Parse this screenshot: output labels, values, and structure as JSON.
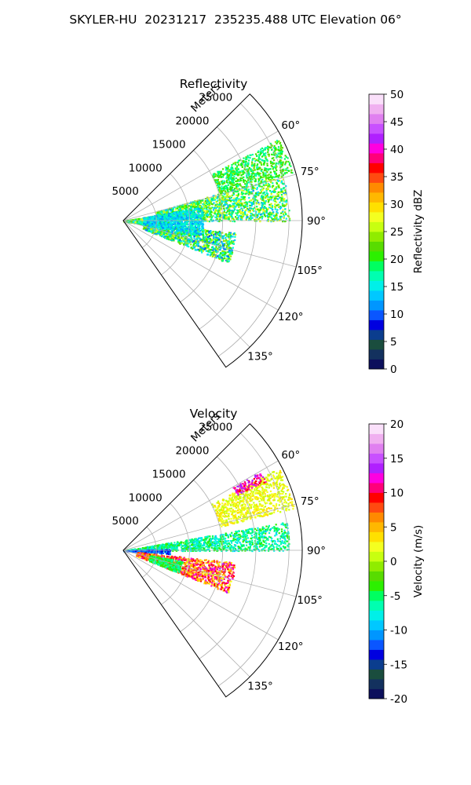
{
  "figure": {
    "title": "SKYLER-HU  20231217  235235.488 UTC Elevation 06°"
  },
  "chart_data": [
    {
      "type": "heatmap",
      "subtype": "polar-sector-radar",
      "title": "Reflectivity",
      "radial_label": "Meters",
      "radial_ticks": [
        5000,
        10000,
        15000,
        20000,
        25000
      ],
      "radial_max": 27000,
      "azimuth_range": [
        45,
        145
      ],
      "azimuth_ticks": [
        60,
        75,
        90,
        105,
        120,
        135
      ],
      "azimuth_tick_labels": [
        "60°",
        "75°",
        "90°",
        "105°",
        "120°",
        "135°"
      ],
      "grid": true,
      "colorbar": {
        "label": "Reflectivity dBZ",
        "min": 0,
        "max": 50,
        "ticks": [
          0,
          5,
          10,
          15,
          20,
          25,
          30,
          35,
          40,
          45,
          50
        ],
        "colors": [
          "#0c0f5c",
          "#13315e",
          "#1a4d3e",
          "#0b3d8e",
          "#0000e0",
          "#0a56ff",
          "#0096ff",
          "#00c8ff",
          "#00f0e8",
          "#00ffb0",
          "#00ff60",
          "#2cf000",
          "#58dc00",
          "#90ec00",
          "#c8ff10",
          "#f4ff20",
          "#ffe000",
          "#ffb800",
          "#ff8a00",
          "#ff4a10",
          "#ff0000",
          "#ff007a",
          "#ff00e0",
          "#b020ff",
          "#c850ff",
          "#e080f0",
          "#f0b0f0",
          "#fae0fa"
        ]
      },
      "echoes": [
        {
          "az_min": 80,
          "az_max": 100,
          "r_min": 0,
          "r_max": 7000,
          "dbz_min": 14,
          "dbz_max": 28
        },
        {
          "az_min": 74,
          "az_max": 90,
          "r_min": 5000,
          "r_max": 25000,
          "dbz_min": 12,
          "dbz_max": 28
        },
        {
          "az_min": 96,
          "az_max": 112,
          "r_min": 3000,
          "r_max": 17000,
          "dbz_min": 10,
          "dbz_max": 27
        },
        {
          "az_min": 62,
          "az_max": 74,
          "r_min": 15000,
          "r_max": 26500,
          "dbz_min": 16,
          "dbz_max": 24
        },
        {
          "az_min": 80,
          "az_max": 100,
          "r_min": 3000,
          "r_max": 12000,
          "dbz_min": 11,
          "dbz_max": 18
        }
      ]
    },
    {
      "type": "heatmap",
      "subtype": "polar-sector-radar",
      "title": "Velocity",
      "radial_label": "Meters",
      "radial_ticks": [
        5000,
        10000,
        15000,
        20000,
        25000
      ],
      "radial_max": 27000,
      "azimuth_range": [
        45,
        145
      ],
      "azimuth_ticks": [
        60,
        75,
        90,
        105,
        120,
        135
      ],
      "azimuth_tick_labels": [
        "60°",
        "75°",
        "90°",
        "105°",
        "120°",
        "135°"
      ],
      "grid": true,
      "colorbar": {
        "label": "Velocity (m/s)",
        "min": -20,
        "max": 20,
        "ticks": [
          -20,
          -15,
          -10,
          -5,
          0,
          5,
          10,
          15,
          20
        ],
        "colors": [
          "#0c0f5c",
          "#13315e",
          "#1a4d3e",
          "#0b3d8e",
          "#0000e0",
          "#0a56ff",
          "#0096ff",
          "#00c8ff",
          "#00f0e8",
          "#00ffb0",
          "#00ff60",
          "#2cf000",
          "#58dc00",
          "#90ec00",
          "#c8ff10",
          "#f4ff20",
          "#ffe000",
          "#ffb800",
          "#ff8a00",
          "#ff4a10",
          "#ff0000",
          "#ff007a",
          "#ff00e0",
          "#b020ff",
          "#c850ff",
          "#e080f0",
          "#f0b0f0",
          "#fae0fa"
        ]
      },
      "echoes": [
        {
          "az_min": 80,
          "az_max": 90,
          "r_min": 0,
          "r_max": 25000,
          "v_min": -9,
          "v_max": -3
        },
        {
          "az_min": 88,
          "az_max": 94,
          "r_min": 0,
          "r_max": 7000,
          "v_min": -14,
          "v_max": -10
        },
        {
          "az_min": 96,
          "az_max": 112,
          "r_min": 2000,
          "r_max": 17000,
          "v_min": 2,
          "v_max": 13
        },
        {
          "az_min": 62,
          "az_max": 76,
          "r_min": 15000,
          "r_max": 26500,
          "v_min": 0,
          "v_max": 4
        },
        {
          "az_min": 60,
          "az_max": 64,
          "r_min": 19000,
          "r_max": 24000,
          "v_min": 9,
          "v_max": 14
        },
        {
          "az_min": 100,
          "az_max": 112,
          "r_min": 4000,
          "r_max": 9000,
          "v_min": -7,
          "v_max": -3
        }
      ]
    }
  ]
}
